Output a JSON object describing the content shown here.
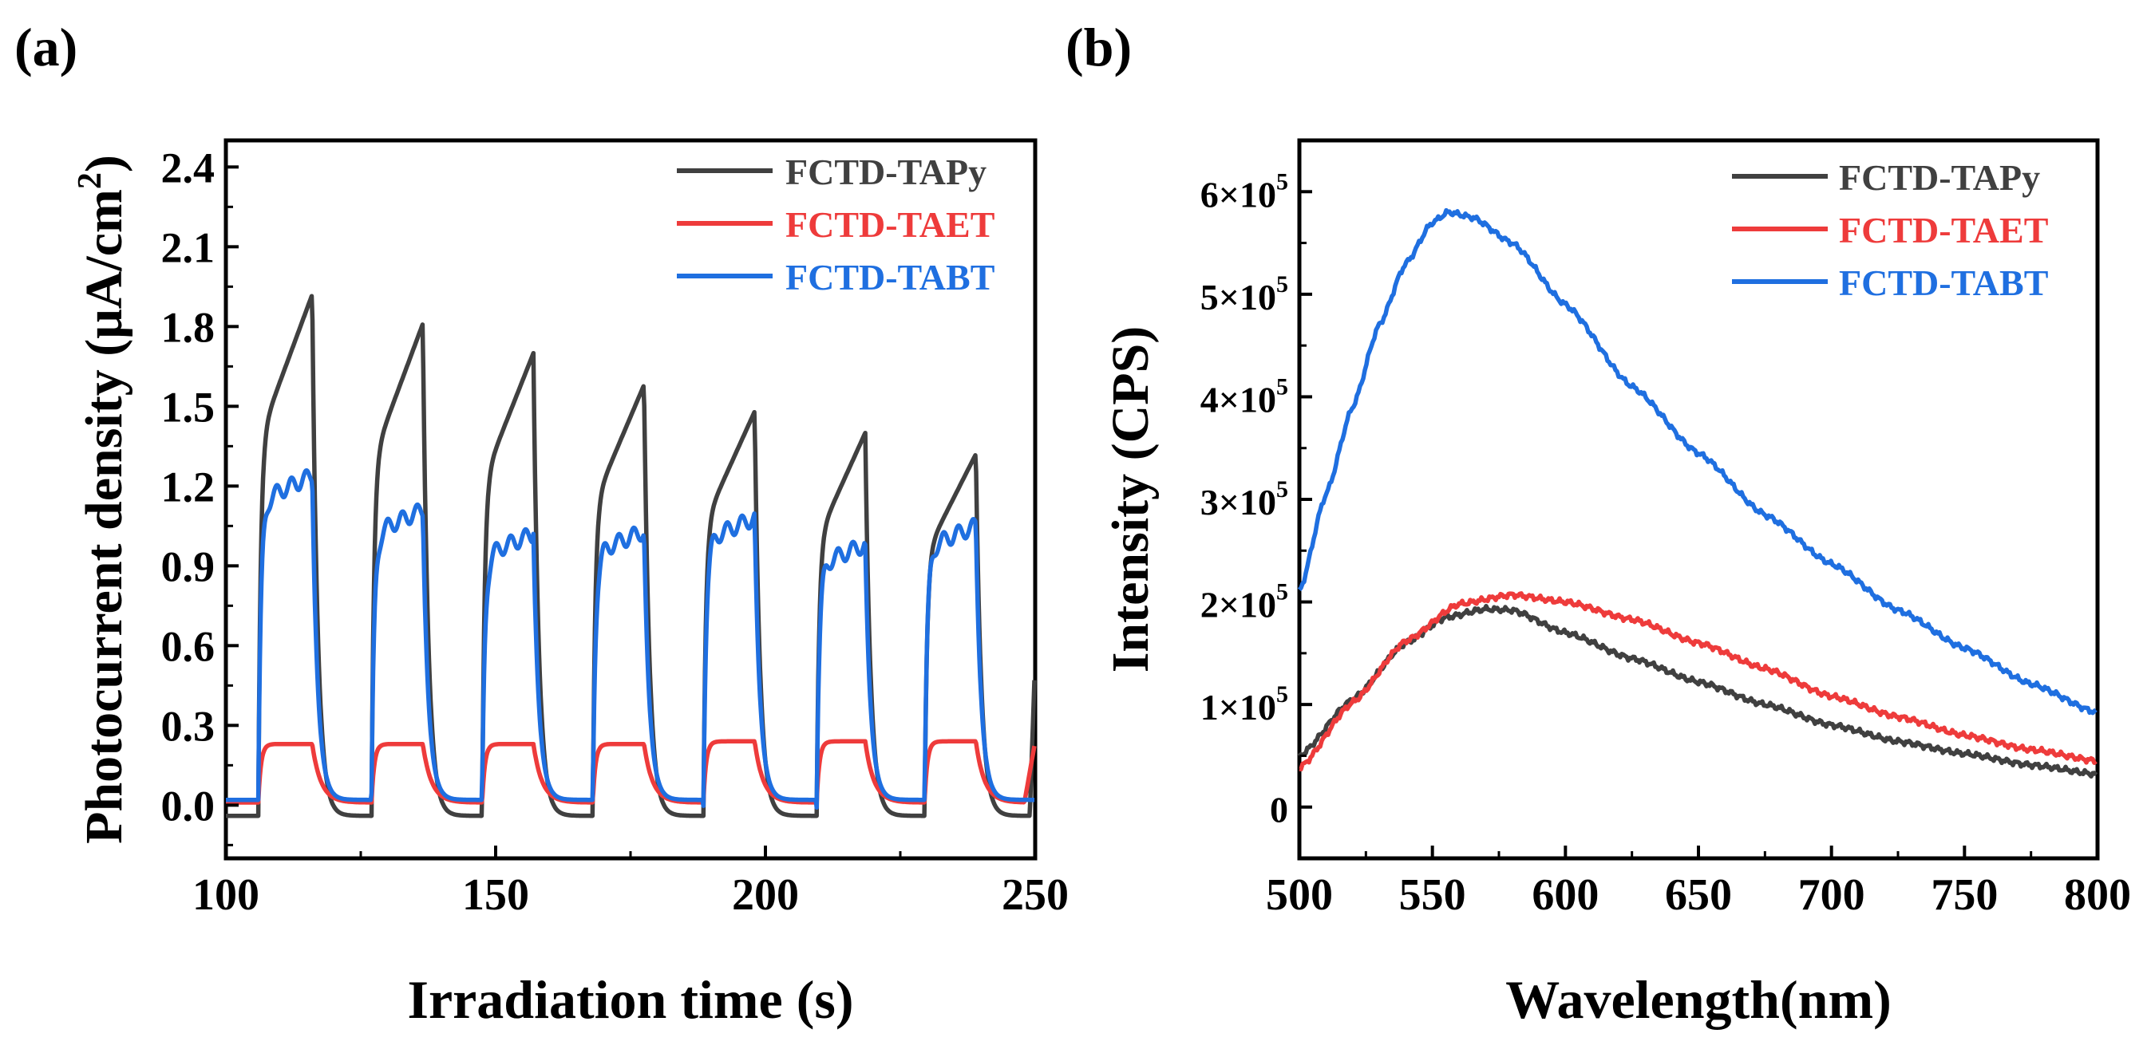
{
  "chart_data": [
    {
      "panel_label": "(a)",
      "type": "line",
      "xlabel": "Irradiation time (s)",
      "ylabel_main": "Photocurrent density (μA/cm",
      "ylabel_sup": "2",
      "ylabel_close": ")",
      "xlim": [
        100,
        250
      ],
      "ylim": [
        -0.2,
        2.5
      ],
      "xticks": [
        100,
        150,
        200,
        250
      ],
      "yticks": [
        0.0,
        0.3,
        0.6,
        0.9,
        1.2,
        1.5,
        1.8,
        2.1,
        2.4
      ],
      "ytick_labels": [
        "0.0",
        "0.3",
        "0.6",
        "0.9",
        "1.2",
        "1.5",
        "1.8",
        "2.1",
        "2.4"
      ],
      "legend_position": "top-right",
      "pulse_on_times": [
        106,
        127,
        147.5,
        168,
        188.5,
        209.5,
        229.5
      ],
      "pulse_off_times": [
        116,
        136.5,
        157,
        177.5,
        198,
        218.5,
        239
      ],
      "series": [
        {
          "name": "FCTD-TAPy",
          "color": "#404040",
          "peaks": [
            1.92,
            1.81,
            1.7,
            1.58,
            1.48,
            1.4,
            1.32
          ],
          "baseline": -0.04
        },
        {
          "name": "FCTD-TAET",
          "color": "#ee3b3b",
          "peaks": [
            0.23,
            0.23,
            0.23,
            0.23,
            0.24,
            0.24,
            0.24
          ],
          "baseline": 0.01
        },
        {
          "name": "FCTD-TABT",
          "color": "#1f6fe0",
          "peaks": [
            1.24,
            1.11,
            1.02,
            1.03,
            1.08,
            0.98,
            1.05
          ],
          "baseline": 0.02
        }
      ]
    },
    {
      "panel_label": "(b)",
      "type": "line",
      "xlabel": "Wavelength(nm)",
      "ylabel": "Intensity (CPS)",
      "xlim": [
        500,
        800
      ],
      "ylim": [
        -50000,
        650000
      ],
      "xticks": [
        500,
        550,
        600,
        650,
        700,
        750,
        800
      ],
      "yticks": [
        0,
        100000,
        200000,
        300000,
        400000,
        500000,
        600000
      ],
      "ytick_labels": [
        {
          "mantissa": "0",
          "exp": ""
        },
        {
          "mantissa": "1×10",
          "exp": "5"
        },
        {
          "mantissa": "2×10",
          "exp": "5"
        },
        {
          "mantissa": "3×10",
          "exp": "5"
        },
        {
          "mantissa": "4×10",
          "exp": "5"
        },
        {
          "mantissa": "5×10",
          "exp": "5"
        },
        {
          "mantissa": "6×10",
          "exp": "5"
        }
      ],
      "legend_position": "top-right",
      "series": [
        {
          "name": "FCTD-TAPy",
          "color": "#404040",
          "x": [
            500,
            520,
            540,
            555,
            570,
            580,
            600,
            625,
            650,
            675,
            700,
            725,
            750,
            775,
            800
          ],
          "y": [
            50000,
            105000,
            160000,
            185000,
            193000,
            192000,
            170000,
            145000,
            122000,
            100000,
            80000,
            64000,
            52000,
            41000,
            32000
          ]
        },
        {
          "name": "FCTD-TAET",
          "color": "#ee3b3b",
          "x": [
            500,
            520,
            540,
            560,
            580,
            600,
            625,
            650,
            675,
            700,
            725,
            750,
            775,
            800
          ],
          "y": [
            38000,
            102000,
            162000,
            198000,
            207000,
            200000,
            183000,
            160000,
            135000,
            108000,
            88000,
            70000,
            56000,
            45000
          ]
        },
        {
          "name": "FCTD-TABT",
          "color": "#1f6fe0",
          "x": [
            500,
            510,
            520,
            530,
            540,
            550,
            556,
            565,
            580,
            600,
            625,
            650,
            675,
            700,
            725,
            750,
            775,
            800
          ],
          "y": [
            210000,
            305000,
            390000,
            470000,
            530000,
            570000,
            580000,
            575000,
            550000,
            490000,
            410000,
            345000,
            285000,
            237000,
            192000,
            155000,
            120000,
            92000
          ]
        }
      ]
    }
  ]
}
